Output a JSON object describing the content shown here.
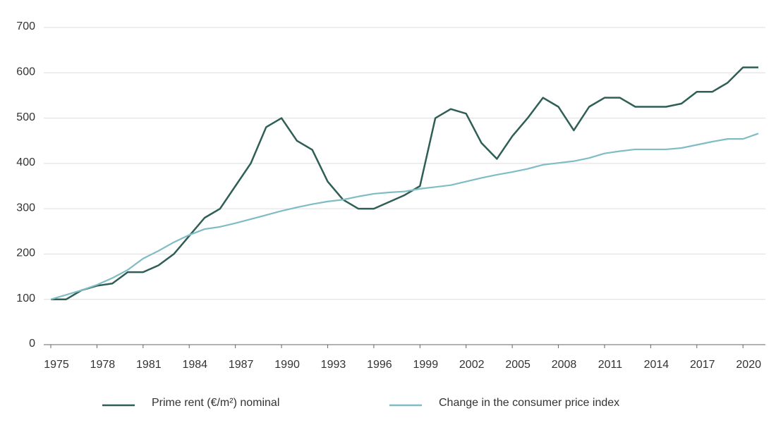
{
  "chart_data": {
    "type": "line",
    "x": [
      1975,
      1976,
      1977,
      1978,
      1979,
      1980,
      1981,
      1982,
      1983,
      1984,
      1985,
      1986,
      1987,
      1988,
      1989,
      1990,
      1991,
      1992,
      1993,
      1994,
      1995,
      1996,
      1997,
      1998,
      1999,
      2000,
      2001,
      2002,
      2003,
      2004,
      2005,
      2006,
      2007,
      2008,
      2009,
      2010,
      2011,
      2012,
      2013,
      2014,
      2015,
      2016,
      2017,
      2018,
      2019,
      2020,
      2021
    ],
    "series": [
      {
        "name": "Prime rent (€/m²) nominal",
        "color": "#2e5e55",
        "values": [
          100,
          100,
          120,
          130,
          135,
          160,
          160,
          175,
          200,
          240,
          280,
          300,
          350,
          400,
          480,
          500,
          450,
          430,
          360,
          320,
          300,
          300,
          315,
          330,
          350,
          500,
          520,
          510,
          445,
          410,
          460,
          500,
          545,
          525,
          473,
          525,
          545,
          545,
          525,
          525,
          525,
          532,
          558,
          558,
          578,
          612,
          612
        ]
      },
      {
        "name": "Change in the consumer price index",
        "color": "#7fbcc4",
        "values": [
          100,
          110,
          120,
          132,
          147,
          165,
          190,
          207,
          226,
          242,
          255,
          260,
          268,
          277,
          286,
          295,
          303,
          310,
          316,
          320,
          327,
          333,
          336,
          338,
          344,
          348,
          352,
          360,
          368,
          375,
          381,
          388,
          397,
          401,
          405,
          412,
          422,
          427,
          431,
          431,
          431,
          434,
          441,
          448,
          454,
          454,
          466
        ]
      }
    ],
    "xlim": [
      1975,
      2021
    ],
    "xticks": [
      1975,
      1978,
      1981,
      1984,
      1987,
      1990,
      1993,
      1996,
      1999,
      2002,
      2005,
      2008,
      2011,
      2014,
      2017,
      2020
    ],
    "ylim": [
      0,
      700
    ],
    "yticks": [
      0,
      100,
      200,
      300,
      400,
      500,
      600,
      700
    ],
    "grid": true,
    "legend": "bottom"
  }
}
